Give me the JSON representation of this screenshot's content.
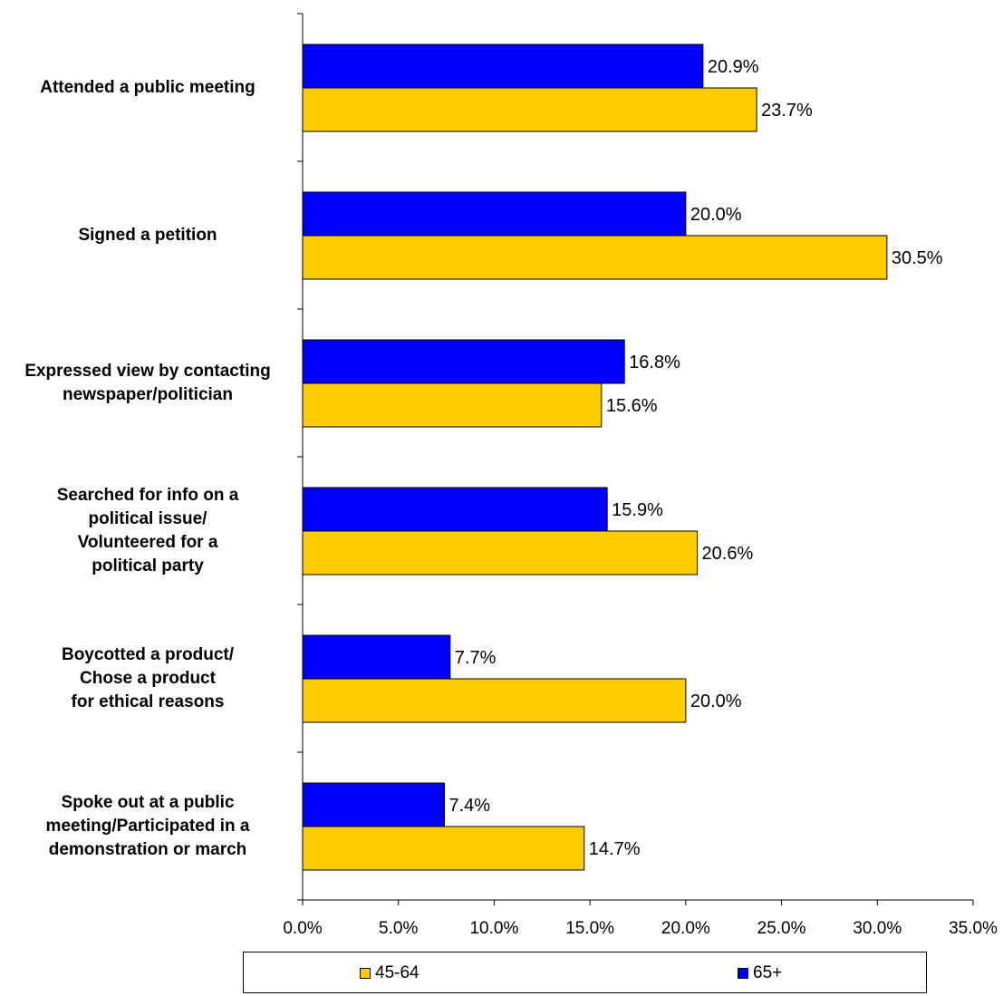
{
  "chart_data": {
    "type": "bar",
    "orientation": "horizontal",
    "categories": [
      [
        "Attended a public meeting"
      ],
      [
        "Signed a petition"
      ],
      [
        "Expressed view by contacting",
        "newspaper/politician"
      ],
      [
        "Searched for info on a",
        "political issue/",
        "Volunteered for a",
        "political party"
      ],
      [
        "Boycotted a product/",
        "Chose a product",
        "for ethical reasons"
      ],
      [
        "Spoke out at a public",
        "meeting/Participated in a",
        "demonstration or march"
      ]
    ],
    "series": [
      {
        "name": "65+",
        "color": "#0000ff",
        "values": [
          20.9,
          20.0,
          16.8,
          15.9,
          7.7,
          7.4
        ],
        "labels": [
          "20.9%",
          "20.0%",
          "16.8%",
          "15.9%",
          "7.7%",
          "7.4%"
        ]
      },
      {
        "name": "45-64",
        "color": "#ffcc00",
        "values": [
          23.7,
          30.5,
          15.6,
          20.6,
          20.0,
          14.7
        ],
        "labels": [
          "23.7%",
          "30.5%",
          "15.6%",
          "20.6%",
          "20.0%",
          "14.7%"
        ]
      }
    ],
    "xlim": [
      0,
      35
    ],
    "xticks": [
      "0.0%",
      "5.0%",
      "10.0%",
      "15.0%",
      "20.0%",
      "25.0%",
      "30.0%",
      "35.0%"
    ],
    "grid": false,
    "legend": {
      "placement": "bottom",
      "items": [
        {
          "name": "45-64",
          "color": "#ffcc00"
        },
        {
          "name": "65+",
          "color": "#0000ff"
        }
      ]
    }
  }
}
